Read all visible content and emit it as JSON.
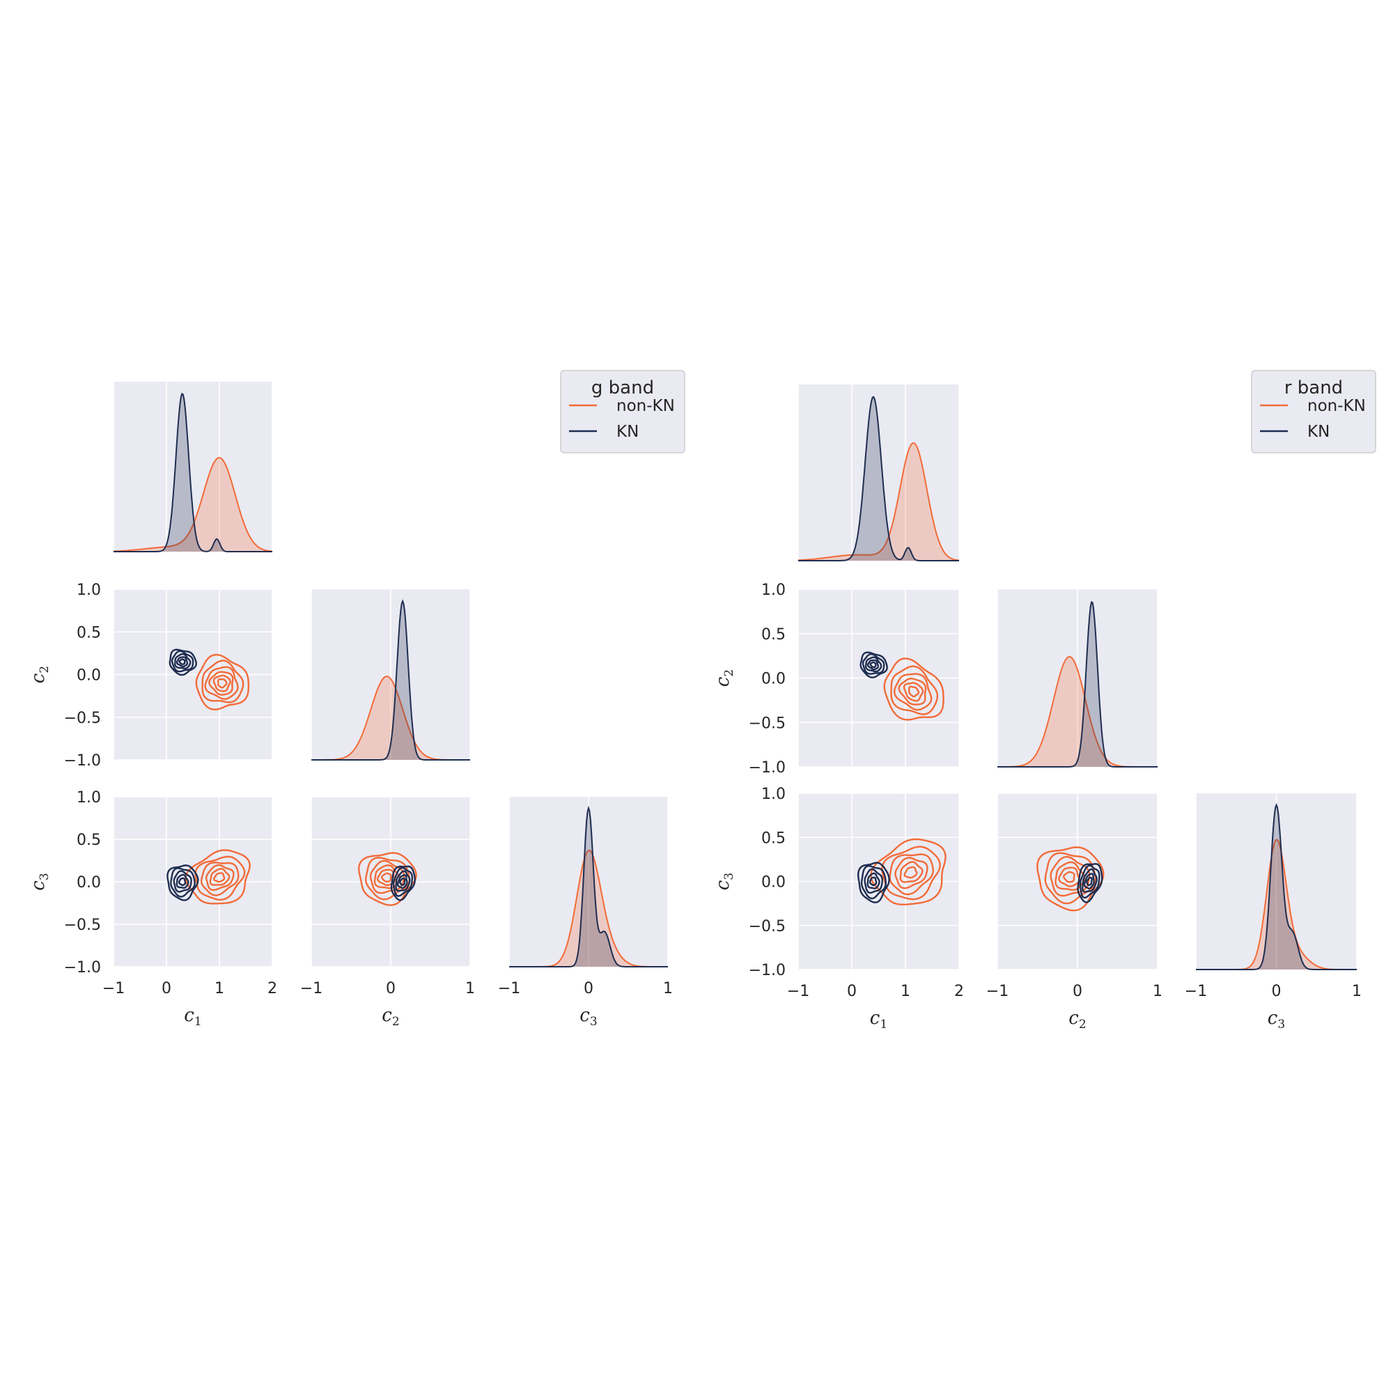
{
  "colors": {
    "non_kn": "#f26b38",
    "kn": "#1e2d50",
    "axes_bg": "#eaeaf2",
    "grid": "#ffffff",
    "text": "#262626"
  },
  "chart_data": [
    {
      "type": "pairplot",
      "legend": {
        "title": "g band",
        "entries": [
          "non-KN",
          "KN"
        ],
        "placement": "top-right"
      },
      "variables": [
        "c1",
        "c2",
        "c3"
      ],
      "axis_labels": {
        "c1": {
          "base": "c",
          "sub": "1"
        },
        "c2": {
          "base": "c",
          "sub": "2"
        },
        "c3": {
          "base": "c",
          "sub": "3"
        }
      },
      "ranges": {
        "c1": [
          -1,
          2
        ],
        "c2": [
          -1,
          1
        ],
        "c3": [
          -1,
          1
        ]
      },
      "ticks": {
        "c1": [
          "−1",
          "0",
          "1",
          "2"
        ],
        "c2": [
          "−1",
          "0",
          "1"
        ],
        "c3": [
          "−1",
          "0",
          "1"
        ],
        "y": [
          "−1.0",
          "−0.5",
          "0.0",
          "0.5",
          "1.0"
        ]
      },
      "grid": true,
      "marginals": {
        "c1": {
          "non-KN": {
            "mean": 1.0,
            "sd": 0.3
          },
          "KN": {
            "mean": 0.3,
            "sd": 0.12,
            "peak_ratio": 1.7
          }
        },
        "c2": {
          "non-KN": {
            "mean": -0.05,
            "sd": 0.2
          },
          "KN": {
            "mean": 0.15,
            "sd": 0.07,
            "peak_ratio": 1.9
          }
        },
        "c3": {
          "non-KN": {
            "mean": 0.0,
            "sd": 0.15
          },
          "KN": {
            "mean": 0.0,
            "sd": 0.06,
            "peak_ratio": 1.4
          }
        }
      },
      "joint": {
        "c1_c2": {
          "non-KN": {
            "center": [
              1.05,
              -0.1
            ],
            "radii": [
              0.5,
              0.3
            ],
            "angle": -40
          },
          "KN": {
            "center": [
              0.3,
              0.15
            ],
            "radii": [
              0.25,
              0.14
            ],
            "angle": -20
          }
        },
        "c1_c3": {
          "non-KN": {
            "center": [
              1.0,
              0.05
            ],
            "radii": [
              0.6,
              0.3
            ],
            "angle": 25
          },
          "KN": {
            "center": [
              0.3,
              0.0
            ],
            "radii": [
              0.28,
              0.2
            ],
            "angle": 0
          }
        },
        "c2_c3": {
          "non-KN": {
            "center": [
              -0.05,
              0.05
            ],
            "radii": [
              0.35,
              0.3
            ],
            "angle": 0
          },
          "KN": {
            "center": [
              0.15,
              0.0
            ],
            "radii": [
              0.14,
              0.2
            ],
            "angle": -15
          }
        }
      }
    },
    {
      "type": "pairplot",
      "legend": {
        "title": "r band",
        "entries": [
          "non-KN",
          "KN"
        ],
        "placement": "top-right"
      },
      "variables": [
        "c1",
        "c2",
        "c3"
      ],
      "axis_labels": {
        "c1": {
          "base": "c",
          "sub": "1"
        },
        "c2": {
          "base": "c",
          "sub": "2"
        },
        "c3": {
          "base": "c",
          "sub": "3"
        }
      },
      "ranges": {
        "c1": [
          -1,
          2
        ],
        "c2": [
          -1,
          1
        ],
        "c3": [
          -1,
          1
        ]
      },
      "ticks": {
        "c1": [
          "−1",
          "0",
          "1",
          "2"
        ],
        "c2": [
          "−1",
          "0",
          "1"
        ],
        "c3": [
          "−1",
          "0",
          "1"
        ],
        "y": [
          "−1.0",
          "−0.5",
          "0.0",
          "0.5",
          "1.0"
        ]
      },
      "grid": true,
      "marginals": {
        "c1": {
          "non-KN": {
            "mean": 1.15,
            "sd": 0.25
          },
          "KN": {
            "mean": 0.4,
            "sd": 0.15,
            "peak_ratio": 1.4
          }
        },
        "c2": {
          "non-KN": {
            "mean": -0.1,
            "sd": 0.2
          },
          "KN": {
            "mean": 0.18,
            "sd": 0.07,
            "peak_ratio": 1.5
          }
        },
        "c3": {
          "non-KN": {
            "mean": 0.0,
            "sd": 0.12
          },
          "KN": {
            "mean": 0.0,
            "sd": 0.07,
            "peak_ratio": 1.3
          }
        }
      },
      "joint": {
        "c1_c2": {
          "non-KN": {
            "center": [
              1.15,
              -0.15
            ],
            "radii": [
              0.6,
              0.3
            ],
            "angle": -45
          },
          "KN": {
            "center": [
              0.4,
              0.15
            ],
            "radii": [
              0.25,
              0.13
            ],
            "angle": -25
          }
        },
        "c1_c3": {
          "non-KN": {
            "center": [
              1.1,
              0.1
            ],
            "radii": [
              0.7,
              0.35
            ],
            "angle": 30
          },
          "KN": {
            "center": [
              0.4,
              0.0
            ],
            "radii": [
              0.28,
              0.22
            ],
            "angle": 0
          }
        },
        "c2_c3": {
          "non-KN": {
            "center": [
              -0.1,
              0.05
            ],
            "radii": [
              0.4,
              0.35
            ],
            "angle": 0
          },
          "KN": {
            "center": [
              0.15,
              0.0
            ],
            "radii": [
              0.14,
              0.22
            ],
            "angle": -15
          }
        }
      }
    }
  ]
}
